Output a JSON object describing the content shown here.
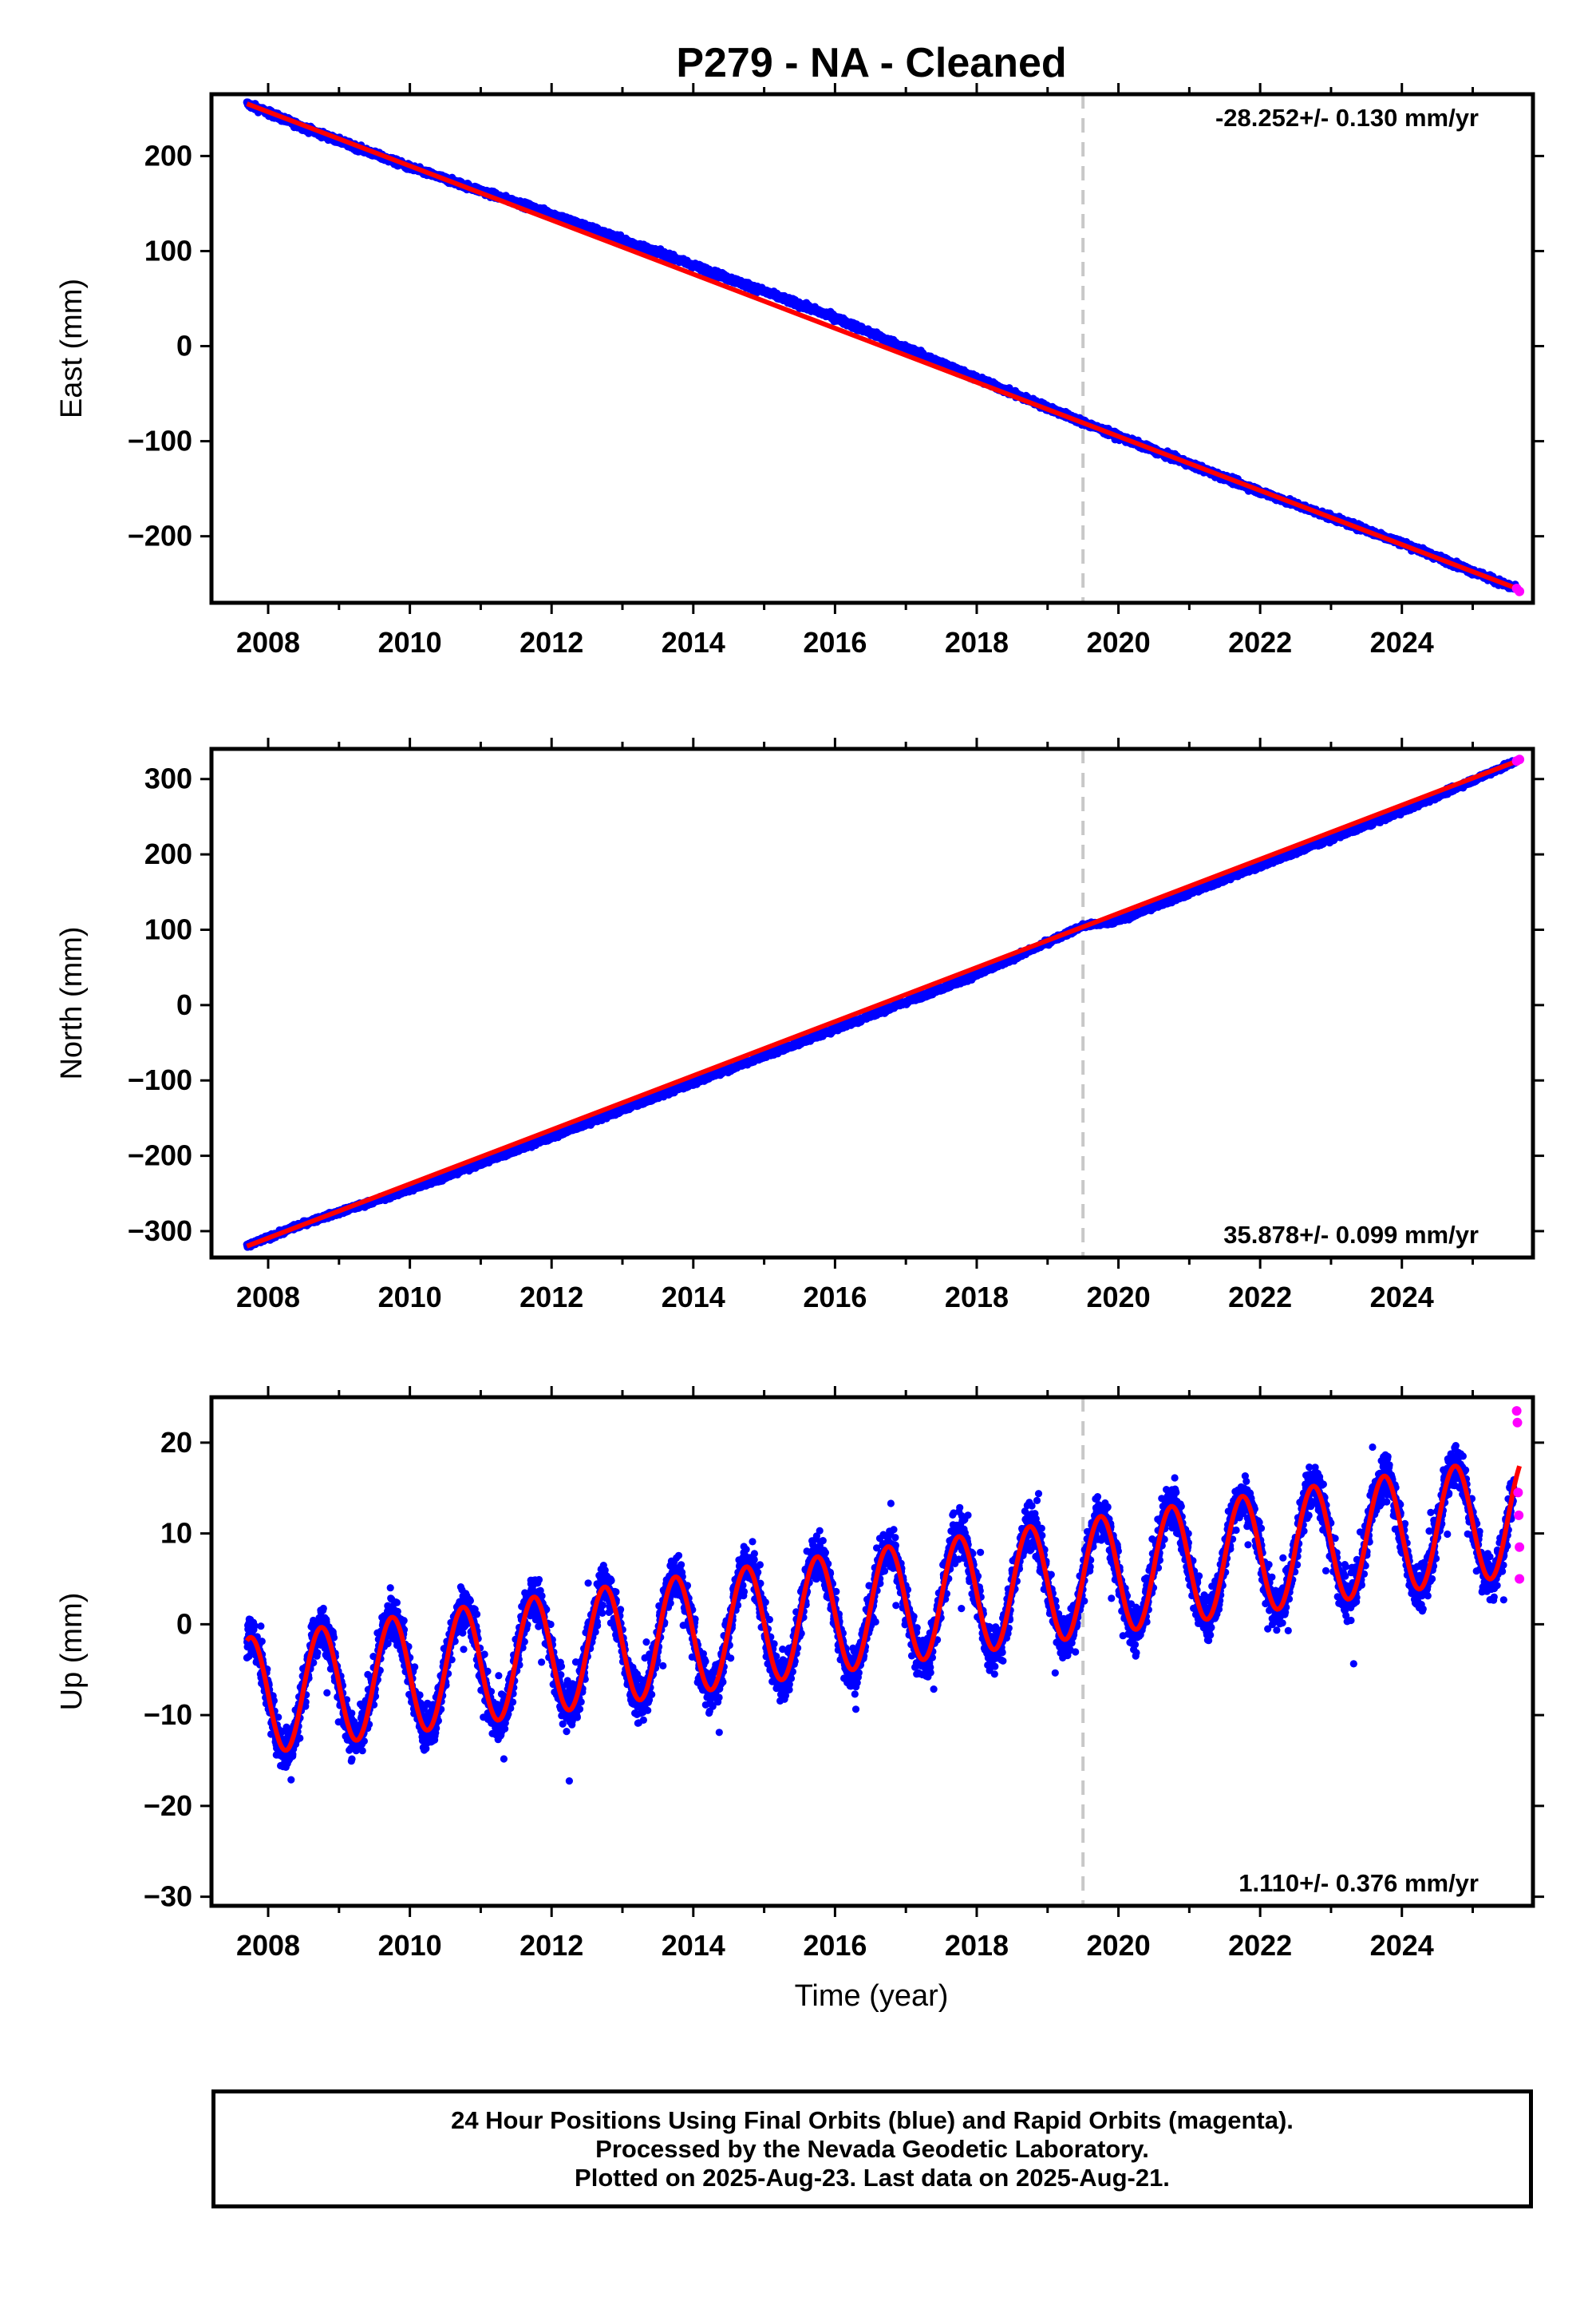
{
  "title": "P279  - NA - Cleaned",
  "xlabel": "Time (year)",
  "footer": {
    "line1": "24 Hour Positions Using Final Orbits (blue) and Rapid Orbits (magenta).",
    "line2": "Processed by the Nevada Geodetic Laboratory.",
    "line3": "Plotted on 2025-Aug-23. Last data on 2025-Aug-21."
  },
  "colors": {
    "final_orbits": "#0000ff",
    "rapid_orbits": "#ff00ff",
    "model_fit": "#ff0000",
    "event_line": "#c8c8c8"
  },
  "chart_data": [
    {
      "type": "scatter",
      "panel": "east",
      "ylabel": "East (mm)",
      "rate_text": "-28.252+/- 0.130 mm/yr",
      "rate_position": "top-right",
      "xlim": [
        2007.2,
        2025.85
      ],
      "ylim": [
        -270,
        265
      ],
      "xticks": [
        2008,
        2010,
        2012,
        2014,
        2016,
        2018,
        2020,
        2022,
        2024
      ],
      "yticks": [
        -200,
        -100,
        0,
        100,
        200
      ],
      "event_lines_x": [
        2019.5
      ],
      "series": [
        {
          "name": "Final Orbits (blue)",
          "x": [
            2007.7,
            2008.5,
            2010.0,
            2012.0,
            2014.0,
            2016.0,
            2018.0,
            2019.5,
            2020.0,
            2022.0,
            2024.0,
            2025.6
          ],
          "y": [
            255,
            230,
            188,
            139,
            85,
            30,
            -34,
            -80,
            -95,
            -153,
            -207,
            -255
          ]
        },
        {
          "name": "Rapid Orbits (magenta)",
          "x": [
            2025.62,
            2025.66
          ],
          "y": [
            -255,
            -258
          ]
        },
        {
          "name": "Model fit",
          "x": [
            2007.7,
            2025.66
          ],
          "y": [
            255,
            -256
          ]
        }
      ]
    },
    {
      "type": "scatter",
      "panel": "north",
      "ylabel": "North (mm)",
      "rate_text": "35.878+/- 0.099 mm/yr",
      "rate_position": "bottom-right",
      "xlim": [
        2007.2,
        2025.85
      ],
      "ylim": [
        -335,
        340
      ],
      "xticks": [
        2008,
        2010,
        2012,
        2014,
        2016,
        2018,
        2020,
        2022,
        2024
      ],
      "yticks": [
        -300,
        -200,
        -100,
        0,
        100,
        200,
        300
      ],
      "event_lines_x": [
        2019.5
      ],
      "series": [
        {
          "name": "Final Orbits (blue)",
          "x": [
            2007.7,
            2008.5,
            2010.0,
            2012.0,
            2014.0,
            2016.0,
            2018.0,
            2019.5,
            2020.0,
            2022.0,
            2024.0,
            2025.6
          ],
          "y": [
            -320,
            -290,
            -245,
            -175,
            -103,
            -32,
            40,
            105,
            112,
            185,
            257,
            323
          ]
        },
        {
          "name": "Rapid Orbits (magenta)",
          "x": [
            2025.62,
            2025.66
          ],
          "y": [
            324,
            326
          ]
        },
        {
          "name": "Model fit",
          "x": [
            2007.7,
            2025.66
          ],
          "y": [
            -320,
            325
          ]
        }
      ]
    },
    {
      "type": "scatter",
      "panel": "up",
      "ylabel": "Up (mm)",
      "rate_text": "1.110+/- 0.376 mm/yr",
      "rate_position": "bottom-right",
      "xlim": [
        2007.2,
        2025.85
      ],
      "ylim": [
        -31,
        25
      ],
      "xticks": [
        2008,
        2010,
        2012,
        2014,
        2016,
        2018,
        2020,
        2022,
        2024
      ],
      "yticks": [
        -30,
        -20,
        -10,
        0,
        10,
        20
      ],
      "event_lines_x": [
        2019.5
      ],
      "seasonal_model": {
        "trend_mm_per_yr": 1.11,
        "offset_mm_at_2007_7": -8.0,
        "annual_amplitude_mm": 6.5,
        "peak_phase_year_fraction": 0.75
      },
      "series": [
        {
          "name": "Final Orbits (blue)",
          "x": [
            2007.75,
            2008.25,
            2008.75,
            2009.25,
            2011.25,
            2014.75,
            2015.75,
            2017.25,
            2018.75,
            2021.75,
            2022.75,
            2023.75,
            2025.5
          ],
          "y": [
            -5,
            -15,
            -3,
            -14,
            -12,
            3,
            5,
            -5,
            8,
            8,
            10,
            11,
            5
          ]
        },
        {
          "name": "Rapid Orbits (magenta)",
          "x": [
            2025.62,
            2025.63,
            2025.64,
            2025.65,
            2025.66,
            2025.66
          ],
          "y": [
            23.5,
            22.2,
            14.5,
            12.0,
            8.5,
            5.0
          ]
        },
        {
          "name": "Model fit",
          "x": [
            2007.7,
            2008.2,
            2008.7,
            2009.2,
            2009.7,
            2010.2,
            2010.7,
            2011.2,
            2011.7,
            2012.2,
            2012.7,
            2013.2,
            2013.7,
            2014.2,
            2014.7,
            2015.2,
            2015.7,
            2016.2,
            2016.7,
            2017.2,
            2017.7,
            2018.2,
            2018.7,
            2019.2,
            2019.7,
            2020.2,
            2020.7,
            2021.2,
            2021.7,
            2022.2,
            2022.7,
            2023.2,
            2023.7,
            2024.2,
            2024.7,
            2025.2,
            2025.66
          ],
          "y": [
            -4.5,
            -15.0,
            -3.0,
            -14.0,
            -1.8,
            -12.5,
            -0.8,
            -11.5,
            0.0,
            -10.5,
            1.5,
            -9.0,
            2.7,
            -8.0,
            3.6,
            -7.0,
            4.8,
            -6.0,
            6.0,
            -5.0,
            7.0,
            -3.8,
            8.2,
            -2.5,
            6.0,
            -4.5,
            7.5,
            -3.0,
            8.6,
            -2.0,
            9.8,
            -1.0,
            11.0,
            -0.2,
            12.0,
            1.0,
            12.0
          ]
        }
      ]
    }
  ]
}
